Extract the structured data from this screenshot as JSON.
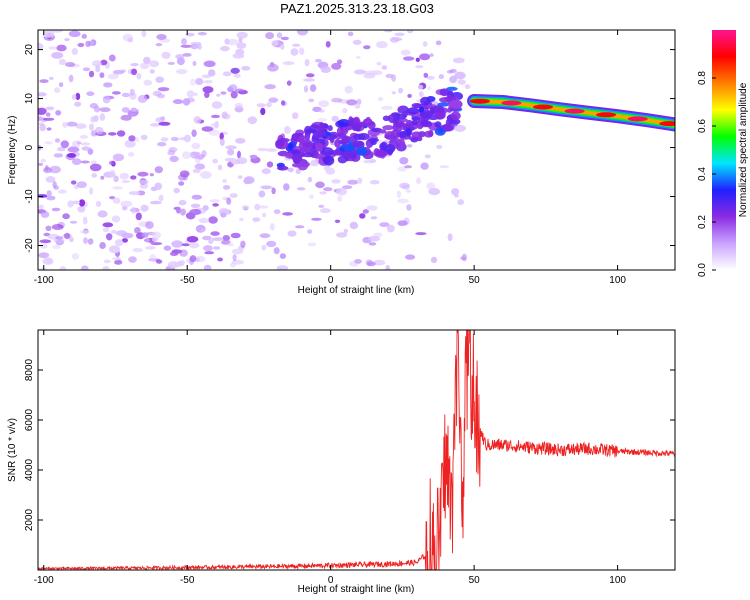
{
  "figure_title": "PAZ1.2025.313.23.18.G03",
  "chart_data": [
    {
      "type": "heatmap",
      "title": "PAZ1.2025.313.23.18.G03",
      "xlabel": "Height of straight line (km)",
      "ylabel": "Frequency (Hz)",
      "xlim": [
        -102,
        120
      ],
      "ylim": [
        -25,
        24
      ],
      "xticks": [
        -100,
        -50,
        0,
        50,
        100
      ],
      "yticks": [
        -20,
        -10,
        0,
        10,
        20
      ],
      "colorbar": {
        "label": "Normalized spectral amplitude",
        "range": [
          0,
          1
        ],
        "ticks": [
          0.0,
          0.2,
          0.4,
          0.6,
          0.8
        ],
        "colors": [
          "#ffffff",
          "#c9a3ff",
          "#8a2be2",
          "#2020ff",
          "#00e5ff",
          "#00ff00",
          "#ffff00",
          "#ff7f00",
          "#ff0000",
          "#ff1493"
        ]
      },
      "ridge": {
        "description_points": [
          {
            "x": 50,
            "y": 9.5
          },
          {
            "x": 60,
            "y": 9.3
          },
          {
            "x": 70,
            "y": 8.6
          },
          {
            "x": 80,
            "y": 7.8
          },
          {
            "x": 90,
            "y": 7.1
          },
          {
            "x": 100,
            "y": 6.4
          },
          {
            "x": 110,
            "y": 5.6
          },
          {
            "x": 120,
            "y": 4.7
          }
        ]
      },
      "cluster": [
        {
          "x": -18,
          "y": -2
        },
        {
          "x": -8,
          "y": 0
        },
        {
          "x": 0,
          "y": 1
        },
        {
          "x": 10,
          "y": 2
        },
        {
          "x": 22,
          "y": 3
        },
        {
          "x": 34,
          "y": 6
        },
        {
          "x": 45,
          "y": 9
        }
      ]
    },
    {
      "type": "line",
      "title": "",
      "xlabel": "Height of straight line (km)",
      "ylabel": "SNR (10 * v/v)",
      "xlim": [
        -102,
        120
      ],
      "ylim": [
        0,
        9600
      ],
      "xticks": [
        -100,
        -50,
        0,
        50,
        100
      ],
      "yticks": [
        2000,
        4000,
        6000,
        8000
      ],
      "series": [
        {
          "name": "SNR",
          "color": "#ee2222",
          "x": [
            -102,
            -80,
            -60,
            -40,
            -20,
            0,
            20,
            30,
            34,
            36,
            38,
            40,
            42,
            44,
            46,
            48,
            50,
            52,
            54,
            60,
            70,
            80,
            90,
            100,
            110,
            120
          ],
          "y": [
            60,
            70,
            90,
            110,
            140,
            180,
            240,
            300,
            700,
            500,
            1500,
            4500,
            2500,
            8800,
            3500,
            9700,
            5500,
            5600,
            5000,
            5000,
            4900,
            4800,
            4850,
            4750,
            4700,
            4650
          ]
        }
      ]
    }
  ]
}
